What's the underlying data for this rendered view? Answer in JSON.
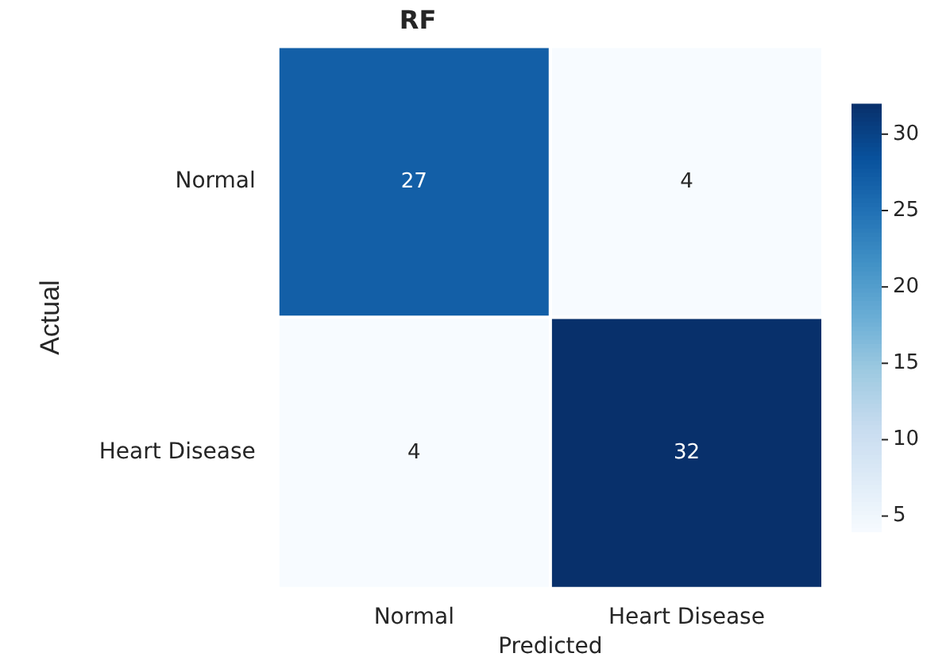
{
  "chart_data": {
    "type": "heatmap",
    "title": "RF",
    "xlabel": "Predicted",
    "ylabel": "Actual",
    "categories": [
      "Normal",
      "Heart Disease"
    ],
    "y_categories": [
      "Normal",
      "Heart Disease"
    ],
    "cells": [
      [
        27,
        4
      ],
      [
        4,
        32
      ]
    ],
    "clim": [
      4,
      32
    ],
    "cticks": [
      5,
      10,
      15,
      20,
      25,
      30
    ],
    "data_labels": true
  }
}
